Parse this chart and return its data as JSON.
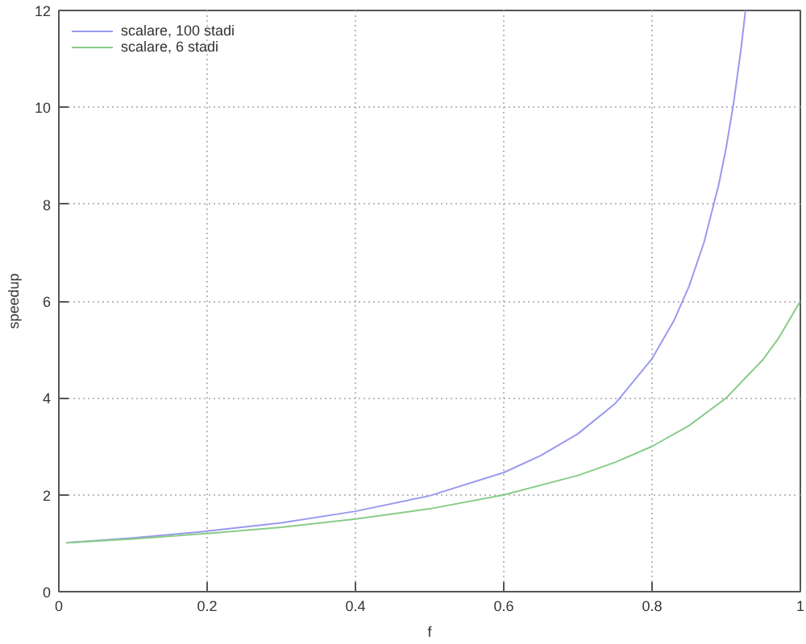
{
  "chart_data": {
    "type": "line",
    "xlabel": "f",
    "ylabel": "speedup",
    "xlim": [
      0,
      1
    ],
    "ylim": [
      0,
      12
    ],
    "xticks": [
      0,
      0.2,
      0.4,
      0.6,
      0.8,
      1
    ],
    "yticks": [
      0,
      2,
      4,
      6,
      8,
      10,
      12
    ],
    "grid": true,
    "legend": "top left",
    "series": [
      {
        "name": "scalare, 100 stadi",
        "color": "#9999ee",
        "x": [
          0.01,
          0.1,
          0.2,
          0.3,
          0.4,
          0.5,
          0.6,
          0.65,
          0.7,
          0.75,
          0.8,
          0.83,
          0.85,
          0.87,
          0.89,
          0.9,
          0.91,
          0.92,
          0.926
        ],
        "values": [
          1.01,
          1.11,
          1.25,
          1.42,
          1.66,
          1.98,
          2.46,
          2.81,
          3.26,
          3.88,
          4.81,
          5.61,
          6.31,
          7.21,
          8.41,
          9.17,
          10.09,
          11.21,
          12.0
        ]
      },
      {
        "name": "scalare, 6 stadi",
        "color": "#88cc88",
        "x": [
          0.01,
          0.1,
          0.2,
          0.3,
          0.4,
          0.5,
          0.6,
          0.7,
          0.75,
          0.8,
          0.85,
          0.9,
          0.95,
          0.97,
          1
        ],
        "values": [
          1.01,
          1.09,
          1.2,
          1.33,
          1.5,
          1.71,
          2,
          2.4,
          2.67,
          3,
          3.43,
          4,
          4.8,
          5.22,
          6
        ]
      }
    ]
  }
}
